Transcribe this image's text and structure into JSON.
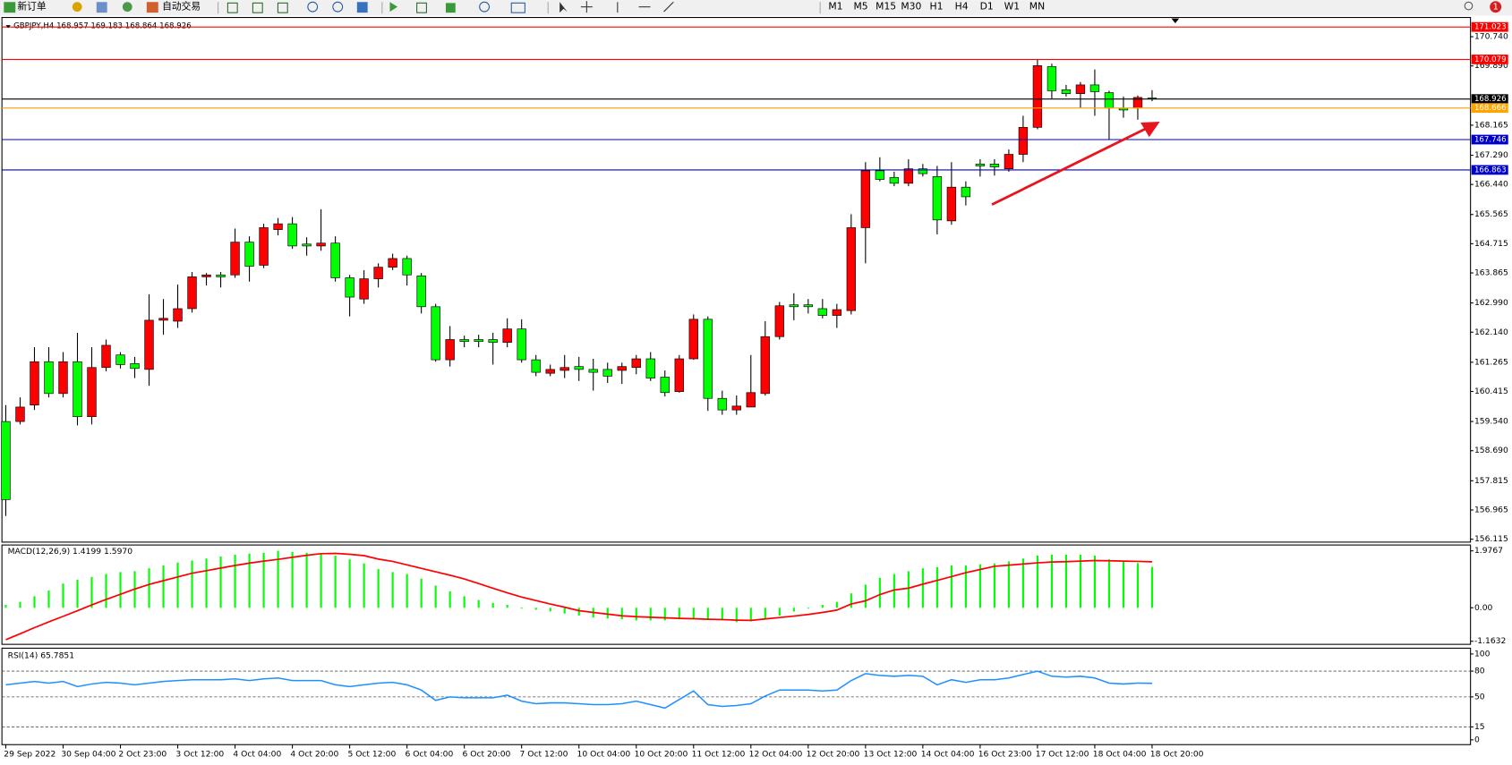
{
  "toolbar": {
    "buttons": [
      "新订单",
      "自动交易"
    ],
    "timeframes": [
      "M1",
      "M5",
      "M15",
      "M30",
      "H1",
      "H4",
      "D1",
      "W1",
      "MN"
    ],
    "badge": "1"
  },
  "chart_data": [
    {
      "type": "candlestick",
      "title": "GBPJPY,H4 168.957 169.183 168.864 168.926",
      "categories": [
        "29 Sep 2022",
        null,
        null,
        null,
        "30 Sep 04:00",
        null,
        null,
        null,
        "2 Oct 23:00",
        null,
        null,
        null,
        "3 Oct 12:00",
        null,
        null,
        null,
        "4 Oct 04:00",
        null,
        null,
        null,
        "4 Oct 20:00",
        null,
        null,
        null,
        "5 Oct 12:00",
        null,
        null,
        null,
        "6 Oct 04:00",
        null,
        null,
        null,
        "6 Oct 20:00",
        null,
        null,
        null,
        "7 Oct 12:00",
        null,
        null,
        null,
        "10 Oct 04:00",
        null,
        null,
        null,
        "10 Oct 20:00",
        null,
        null,
        null,
        "11 Oct 12:00",
        null,
        null,
        null,
        "12 Oct 04:00",
        null,
        null,
        null,
        "12 Oct 20:00",
        null,
        null,
        null,
        "13 Oct 12:00",
        null,
        null,
        null,
        "14 Oct 04:00",
        null,
        null,
        null,
        "16 Oct 23:00",
        null,
        null,
        null,
        "17 Oct 12:00",
        null,
        null,
        null,
        "18 Oct 04:00",
        null,
        null,
        null,
        "18 Oct 20:00"
      ],
      "open": [
        159.54,
        159.54,
        160.018,
        161.281,
        160.354,
        161.281,
        159.681,
        161.112,
        161.477,
        161.225,
        161.056,
        162.488,
        162.46,
        162.825,
        163.751,
        163.807,
        163.807,
        164.761,
        164.088,
        165.126,
        165.295,
        164.705,
        164.649,
        164.733,
        163.723,
        163.105,
        163.695,
        164.032,
        164.284,
        163.779,
        162.881,
        161.337,
        161.926,
        161.926,
        161.926,
        161.842,
        162.235,
        161.337,
        160.944,
        161.028,
        161.14,
        161.056,
        161.056,
        161.028,
        161.112,
        161.365,
        160.832,
        160.411,
        161.365,
        162.516,
        160.214,
        159.877,
        159.961,
        160.354,
        162.011,
        162.937,
        162.937,
        162.825,
        162.628,
        162.768,
        165.182,
        166.839,
        166.642,
        166.474,
        166.895,
        166.67,
        165.379,
        166.361,
        167.035,
        167.035,
        166.895,
        167.316,
        168.102,
        169.87,
        169.196,
        169.084,
        169.337,
        169.112,
        168.663,
        168.663,
        168.957
      ],
      "high": [
        160.018,
        160.242,
        161.702,
        161.702,
        161.561,
        162.123,
        161.702,
        161.926,
        161.561,
        161.421,
        163.246,
        163.105,
        163.526,
        163.891,
        163.863,
        163.891,
        165.154,
        164.93,
        165.295,
        165.463,
        165.491,
        164.902,
        165.716,
        164.93,
        163.807,
        163.947,
        164.144,
        164.425,
        164.368,
        163.863,
        162.965,
        162.319,
        162.039,
        162.067,
        162.123,
        162.544,
        162.516,
        161.477,
        161.197,
        161.477,
        161.421,
        161.365,
        161.253,
        161.253,
        161.477,
        161.561,
        161.028,
        161.477,
        162.656,
        162.6,
        160.439,
        160.298,
        161.477,
        162.46,
        163.021,
        163.274,
        163.105,
        163.105,
        162.965,
        165.575,
        167.091,
        167.232,
        166.811,
        167.175,
        167.035,
        166.979,
        167.091,
        166.53,
        167.175,
        167.175,
        167.456,
        168.439,
        170.067,
        169.954,
        169.337,
        169.421,
        169.786,
        169.168,
        169.0,
        169.028,
        169.183
      ],
      "low": [
        156.79,
        159.456,
        159.877,
        160.242,
        160.242,
        159.428,
        159.456,
        161.0,
        161.084,
        160.804,
        160.579,
        162.067,
        162.263,
        162.712,
        163.498,
        163.442,
        163.723,
        163.611,
        164.004,
        164.958,
        164.565,
        164.368,
        164.509,
        163.611,
        162.6,
        162.965,
        163.442,
        163.947,
        163.498,
        162.684,
        161.281,
        161.14,
        161.702,
        161.702,
        161.197,
        161.702,
        161.253,
        160.86,
        160.86,
        160.804,
        160.719,
        160.439,
        160.663,
        160.635,
        160.916,
        160.719,
        160.27,
        160.382,
        161.337,
        159.849,
        159.737,
        159.737,
        159.961,
        160.298,
        161.926,
        162.488,
        162.684,
        162.544,
        162.263,
        162.656,
        164.144,
        166.53,
        166.389,
        166.389,
        166.67,
        164.986,
        165.267,
        165.828,
        166.67,
        166.698,
        166.811,
        167.091,
        168.046,
        168.944,
        169.0,
        168.663,
        168.439,
        167.737,
        168.382,
        168.326,
        168.864
      ],
      "close": [
        157.267,
        159.961,
        161.281,
        160.354,
        161.281,
        159.681,
        161.112,
        161.758,
        161.197,
        161.084,
        162.488,
        162.544,
        162.825,
        163.751,
        163.807,
        163.751,
        164.761,
        164.06,
        165.182,
        165.295,
        164.649,
        164.649,
        164.733,
        163.723,
        163.161,
        163.695,
        164.032,
        164.284,
        163.807,
        162.881,
        161.337,
        161.926,
        161.87,
        161.87,
        161.842,
        162.235,
        161.337,
        160.972,
        161.056,
        161.112,
        161.056,
        160.972,
        160.86,
        161.14,
        161.365,
        160.804,
        160.382,
        161.365,
        162.516,
        160.214,
        159.877,
        159.99,
        160.382,
        162.011,
        162.909,
        162.881,
        162.881,
        162.628,
        162.797,
        165.182,
        166.839,
        166.586,
        166.474,
        166.895,
        166.754,
        165.407,
        166.361,
        166.081,
        166.979,
        166.951,
        167.316,
        168.102,
        169.898,
        169.168,
        169.084,
        169.337,
        169.14,
        168.663,
        168.607,
        168.972,
        168.926
      ],
      "up_color": "#ff0000",
      "down_color": "#00ff00",
      "ylim": [
        156.03,
        171.3
      ],
      "yticks": [
        {
          "value": 170.74,
          "label": "170.740"
        },
        {
          "value": 169.89,
          "label": "169.890"
        },
        168.165,
        {
          "value": 167.29,
          "label": "167.290"
        },
        {
          "value": 166.44,
          "label": "166.440"
        },
        165.565,
        164.715,
        163.865,
        {
          "value": 162.99,
          "label": "162.990"
        },
        {
          "value": 162.14,
          "label": "162.140"
        },
        161.265,
        160.415,
        {
          "value": 159.54,
          "label": "159.540"
        },
        {
          "value": 158.69,
          "label": "158.690"
        },
        157.815,
        156.965,
        156.115
      ],
      "levels": [
        {
          "value": 171.023,
          "color": "#ff0000"
        },
        {
          "value": 170.079,
          "color": "#ff0000"
        },
        {
          "value": 168.926,
          "color": "#000000"
        },
        {
          "value": 168.666,
          "color": "#ffa500"
        },
        {
          "value": 167.746,
          "color": "#0000cc"
        },
        {
          "value": 166.863,
          "color": "#0000cc"
        }
      ]
    },
    {
      "type": "macd",
      "title": "MACD(12,26,9) 1.4199 1.5970",
      "series": [
        {
          "type": "bar",
          "color": "#00ff00",
          "values": [
            0.1,
            0.2,
            0.4,
            0.6,
            0.84,
            0.97,
            1.07,
            1.17,
            1.24,
            1.27,
            1.37,
            1.47,
            1.57,
            1.64,
            1.71,
            1.78,
            1.84,
            1.88,
            1.91,
            1.98,
            1.94,
            1.91,
            1.88,
            1.81,
            1.68,
            1.54,
            1.34,
            1.24,
            1.17,
            1.01,
            0.77,
            0.57,
            0.4,
            0.27,
            0.17,
            0.1,
            -0.03,
            -0.07,
            -0.13,
            -0.2,
            -0.27,
            -0.34,
            -0.37,
            -0.4,
            -0.44,
            -0.44,
            -0.44,
            -0.4,
            -0.37,
            -0.4,
            -0.44,
            -0.5,
            -0.47,
            -0.37,
            -0.27,
            -0.13,
            -0.03,
            0.1,
            0.2,
            0.5,
            0.8,
            1.04,
            1.17,
            1.27,
            1.37,
            1.41,
            1.47,
            1.47,
            1.51,
            1.54,
            1.61,
            1.71,
            1.81,
            1.84,
            1.84,
            1.84,
            1.81,
            1.68,
            1.62,
            1.55,
            1.4199
          ]
        },
        {
          "type": "line",
          "color": "#ff0000",
          "values": [
            -1.11,
            -0.9,
            -0.69,
            -0.49,
            -0.3,
            -0.1,
            0.1,
            0.29,
            0.47,
            0.65,
            0.81,
            0.94,
            1.07,
            1.2,
            1.29,
            1.38,
            1.47,
            1.55,
            1.62,
            1.68,
            1.75,
            1.82,
            1.88,
            1.89,
            1.86,
            1.81,
            1.69,
            1.61,
            1.49,
            1.37,
            1.25,
            1.13,
            1.0,
            0.84,
            0.68,
            0.52,
            0.37,
            0.25,
            0.13,
            0.02,
            -0.1,
            -0.16,
            -0.22,
            -0.28,
            -0.31,
            -0.33,
            -0.35,
            -0.37,
            -0.38,
            -0.4,
            -0.41,
            -0.43,
            -0.44,
            -0.39,
            -0.34,
            -0.29,
            -0.23,
            -0.16,
            -0.08,
            0.13,
            0.24,
            0.46,
            0.62,
            0.68,
            0.82,
            0.95,
            1.08,
            1.22,
            1.33,
            1.44,
            1.48,
            1.52,
            1.56,
            1.59,
            1.6,
            1.62,
            1.64,
            1.63,
            1.62,
            1.61,
            1.597
          ]
        }
      ],
      "ylim": [
        -1.27,
        2.18
      ],
      "yticks": [
        1.9767,
        {
          "value": 0,
          "label": "0.00"
        },
        -1.1632
      ]
    },
    {
      "type": "rsi",
      "title": "RSI(14) 65.7851",
      "color": "#1e90ff",
      "values": [
        64,
        66,
        68,
        66,
        68,
        62,
        65,
        67,
        66,
        64,
        66,
        68,
        69,
        70,
        70,
        70,
        71,
        69,
        71,
        72,
        69,
        69,
        69,
        64,
        62,
        64,
        66,
        67,
        64,
        58,
        46,
        50,
        49,
        49,
        49,
        52,
        45,
        42,
        43,
        43,
        42,
        41,
        41,
        42,
        45,
        41,
        37,
        47,
        57,
        41,
        39,
        40,
        42,
        51,
        58,
        58,
        58,
        57,
        58,
        69,
        77,
        75,
        74,
        75,
        74,
        64,
        70,
        67,
        70,
        70,
        72,
        76,
        80,
        74,
        73,
        74,
        72,
        66,
        65,
        66,
        65.7851
      ],
      "ylim": [
        -5.6,
        106.7
      ],
      "yticks": [
        100,
        80,
        50,
        15,
        0
      ],
      "levels": [
        80,
        50,
        15
      ]
    }
  ]
}
